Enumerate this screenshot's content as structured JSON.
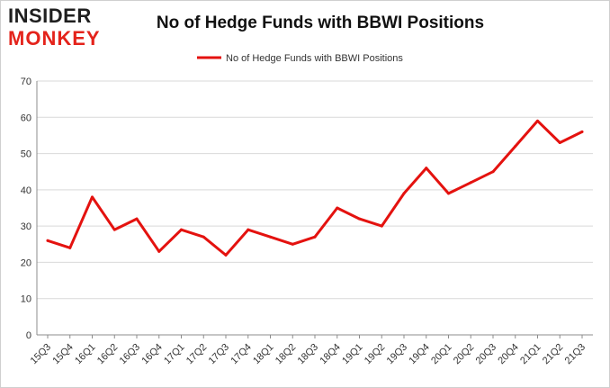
{
  "logo": {
    "line1": "INSIDER",
    "line2": "MONKEY"
  },
  "colors": {
    "series": "#e4120f",
    "grid": "#d9d9d9",
    "axis": "#8c8c8c",
    "text": "#333333",
    "logo_red": "#e4231b"
  },
  "chart_data": {
    "type": "line",
    "title": "No of Hedge Funds with BBWI Positions",
    "xlabel": "",
    "ylabel": "",
    "ylim": [
      0,
      70
    ],
    "yticks": [
      0,
      10,
      20,
      30,
      40,
      50,
      60,
      70
    ],
    "grid": true,
    "legend_position": "top-center",
    "categories": [
      "15Q3",
      "15Q4",
      "16Q1",
      "16Q2",
      "16Q3",
      "16Q4",
      "17Q1",
      "17Q2",
      "17Q3",
      "17Q4",
      "18Q1",
      "18Q2",
      "18Q3",
      "18Q4",
      "19Q1",
      "19Q2",
      "19Q3",
      "19Q4",
      "20Q1",
      "20Q2",
      "20Q3",
      "20Q4",
      "21Q1",
      "21Q2",
      "21Q3"
    ],
    "series": [
      {
        "name": "No of Hedge Funds with BBWI Positions",
        "values": [
          26,
          24,
          38,
          29,
          32,
          23,
          29,
          27,
          22,
          29,
          27,
          25,
          27,
          35,
          32,
          30,
          39,
          46,
          39,
          42,
          45,
          52,
          59,
          53,
          56
        ]
      }
    ]
  }
}
